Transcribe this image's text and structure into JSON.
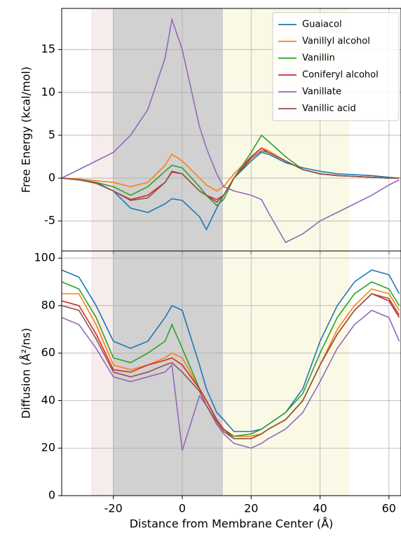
{
  "chart_data": [
    {
      "type": "line",
      "ylabel": "Free Energy (kcal/mol)",
      "x": [
        -35,
        -30,
        -25,
        -20,
        -15,
        -10,
        -5,
        -3,
        0,
        5,
        7,
        10,
        12,
        15,
        20,
        23,
        25,
        30,
        35,
        40,
        45,
        50,
        55,
        60,
        63
      ],
      "xlim": [
        -35,
        63.5
      ],
      "xticks": [
        -20,
        0,
        20,
        40,
        60
      ],
      "ylim": [
        -8.5,
        19.8
      ],
      "yticks": [
        -5,
        0,
        5,
        10,
        15
      ],
      "grid": true,
      "legend": "upper right",
      "series": [
        {
          "name": "Guaiacol",
          "color": "#1f77b4",
          "values": [
            0,
            -0.2,
            -0.5,
            -1.5,
            -3.5,
            -4,
            -3,
            -2.4,
            -2.6,
            -4.5,
            -6,
            -3.5,
            -2,
            0,
            2,
            3,
            2.8,
            1.8,
            1.2,
            0.8,
            0.5,
            0.4,
            0.3,
            0.1,
            0
          ]
        },
        {
          "name": "Vanillyl alcohol",
          "color": "#ff7f0e",
          "values": [
            0,
            -0.1,
            -0.3,
            -0.5,
            -1,
            -0.5,
            1.5,
            2.8,
            2,
            0,
            -0.8,
            -1.5,
            -1,
            0.5,
            2.5,
            3.5,
            3.2,
            2,
            1,
            0.5,
            0.3,
            0.2,
            0.1,
            0,
            0
          ]
        },
        {
          "name": "Vanillin",
          "color": "#2ca02c",
          "values": [
            0,
            -0.2,
            -0.5,
            -1,
            -2,
            -1,
            0.8,
            1.5,
            1.2,
            -1,
            -2,
            -3.2,
            -2.5,
            0,
            3,
            5,
            4.3,
            2.5,
            1,
            0.5,
            0.3,
            0.2,
            0.1,
            0,
            0
          ]
        },
        {
          "name": "Coniferyl alcohol",
          "color": "#d62728",
          "values": [
            0,
            -0.2,
            -0.6,
            -1.5,
            -2.5,
            -2,
            -0.5,
            0.7,
            0.5,
            -1.5,
            -2,
            -2.8,
            -2,
            0,
            2.5,
            3.5,
            3,
            2,
            1,
            0.5,
            0.3,
            0.2,
            0.1,
            0,
            0
          ]
        },
        {
          "name": "Vanillate",
          "color": "#9467bd",
          "values": [
            0,
            1,
            2,
            3,
            5,
            8,
            14,
            18.5,
            15,
            6,
            3.5,
            0.5,
            -1,
            -1.5,
            -2,
            -2.5,
            -4,
            -7.5,
            -6.5,
            -5,
            -4,
            -3,
            -2,
            -0.8,
            -0.2
          ]
        },
        {
          "name": "Vanillic acid",
          "color": "#8c564b",
          "values": [
            0,
            -0.2,
            -0.6,
            -1.5,
            -2.6,
            -2.3,
            -0.5,
            0.8,
            0.5,
            -1.5,
            -2,
            -2.5,
            -2,
            0,
            2.3,
            3.2,
            3,
            2,
            1,
            0.5,
            0.3,
            0.2,
            0.1,
            0,
            0
          ]
        }
      ]
    },
    {
      "type": "line",
      "xlabel": "Distance from Membrane Center (Å)",
      "ylabel": "Diffusion (Å²/ns)",
      "x": [
        -35,
        -30,
        -25,
        -20,
        -15,
        -10,
        -5,
        -3,
        0,
        5,
        7,
        10,
        12,
        15,
        20,
        23,
        25,
        30,
        35,
        40,
        45,
        50,
        55,
        60,
        63
      ],
      "xlim": [
        -35,
        63.5
      ],
      "xticks": [
        -20,
        0,
        20,
        40,
        60
      ],
      "ylim": [
        0,
        103
      ],
      "yticks": [
        0,
        20,
        40,
        60,
        80,
        100
      ],
      "grid": true,
      "series": [
        {
          "color": "#1f77b4",
          "values": [
            95,
            92,
            80,
            65,
            62,
            65,
            75,
            80,
            78,
            55,
            45,
            35,
            32,
            27,
            27,
            28,
            30,
            35,
            45,
            65,
            80,
            90,
            95,
            93,
            85
          ]
        },
        {
          "color": "#ff7f0e",
          "values": [
            85,
            85,
            72,
            55,
            53,
            55,
            58,
            60,
            58,
            45,
            40,
            32,
            28,
            25,
            25,
            26,
            28,
            32,
            40,
            55,
            70,
            80,
            87,
            85,
            78
          ]
        },
        {
          "color": "#2ca02c",
          "values": [
            90,
            87,
            75,
            58,
            56,
            60,
            65,
            72,
            62,
            45,
            40,
            32,
            28,
            25,
            26,
            28,
            30,
            35,
            43,
            60,
            75,
            85,
            90,
            87,
            80
          ]
        },
        {
          "color": "#d62728",
          "values": [
            82,
            80,
            68,
            53,
            52,
            55,
            57,
            58,
            55,
            45,
            40,
            32,
            28,
            24,
            24,
            26,
            28,
            32,
            40,
            55,
            68,
            78,
            85,
            82,
            75
          ]
        },
        {
          "color": "#9467bd",
          "values": [
            75,
            72,
            62,
            50,
            48,
            50,
            52,
            55,
            19,
            42,
            38,
            30,
            26,
            22,
            20,
            22,
            24,
            28,
            35,
            48,
            62,
            72,
            78,
            75,
            65
          ]
        },
        {
          "color": "#8c564b",
          "values": [
            80,
            78,
            66,
            52,
            50,
            52,
            55,
            56,
            52,
            44,
            38,
            31,
            27,
            24,
            24,
            26,
            28,
            32,
            40,
            55,
            68,
            78,
            85,
            83,
            76
          ]
        }
      ]
    }
  ]
}
